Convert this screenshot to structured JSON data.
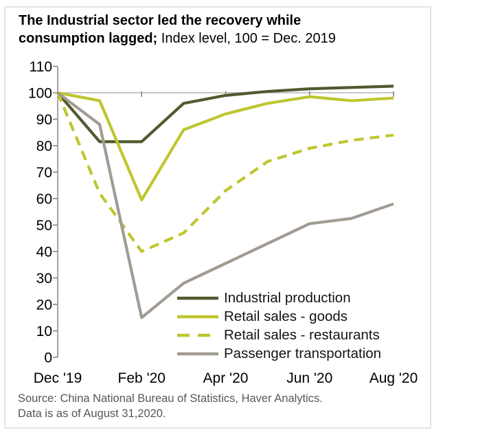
{
  "title": {
    "line1": "The Industrial sector led the recovery while",
    "line2_bold": "consumption lagged;",
    "line2_regular": " Index level, 100 = Dec. 2019"
  },
  "source": {
    "line1": "Source: China National Bureau of Statistics, Haver Analytics.",
    "line2": "Data is as of August 31,2020."
  },
  "chart_data": {
    "type": "line",
    "x": [
      "Dec '19",
      "Jan '20",
      "Feb '20",
      "Mar '20",
      "Apr '20",
      "May '20",
      "Jun '20",
      "Jul '20",
      "Aug '20"
    ],
    "x_tick_labels": [
      "Dec '19",
      "Feb '20",
      "Apr '20",
      "Jun '20",
      "Aug '20"
    ],
    "ylim": [
      0,
      110
    ],
    "ytick_step": 10,
    "baseline": 100,
    "grid": false,
    "legend_position": "inside-bottom-right",
    "series": [
      {
        "name": "Industrial production",
        "color": "#4f5b2e",
        "dash": "solid",
        "values": [
          100,
          81.5,
          81.5,
          96,
          99,
          100.5,
          101.5,
          102,
          102.5
        ]
      },
      {
        "name": "Retail sales - goods",
        "color": "#bec62f",
        "dash": "solid",
        "values": [
          100,
          97,
          59.5,
          86,
          92,
          96,
          98.5,
          97,
          98
        ]
      },
      {
        "name": "Retail sales - restaurants",
        "color": "#bec62f",
        "dash": "dashed",
        "values": [
          100,
          62,
          40,
          47,
          63,
          74,
          79,
          82,
          84
        ]
      },
      {
        "name": "Passenger transportation",
        "color": "#a29b93",
        "dash": "solid",
        "values": [
          100,
          88,
          15,
          28,
          35.5,
          43,
          50.5,
          52.5,
          58
        ]
      }
    ]
  }
}
